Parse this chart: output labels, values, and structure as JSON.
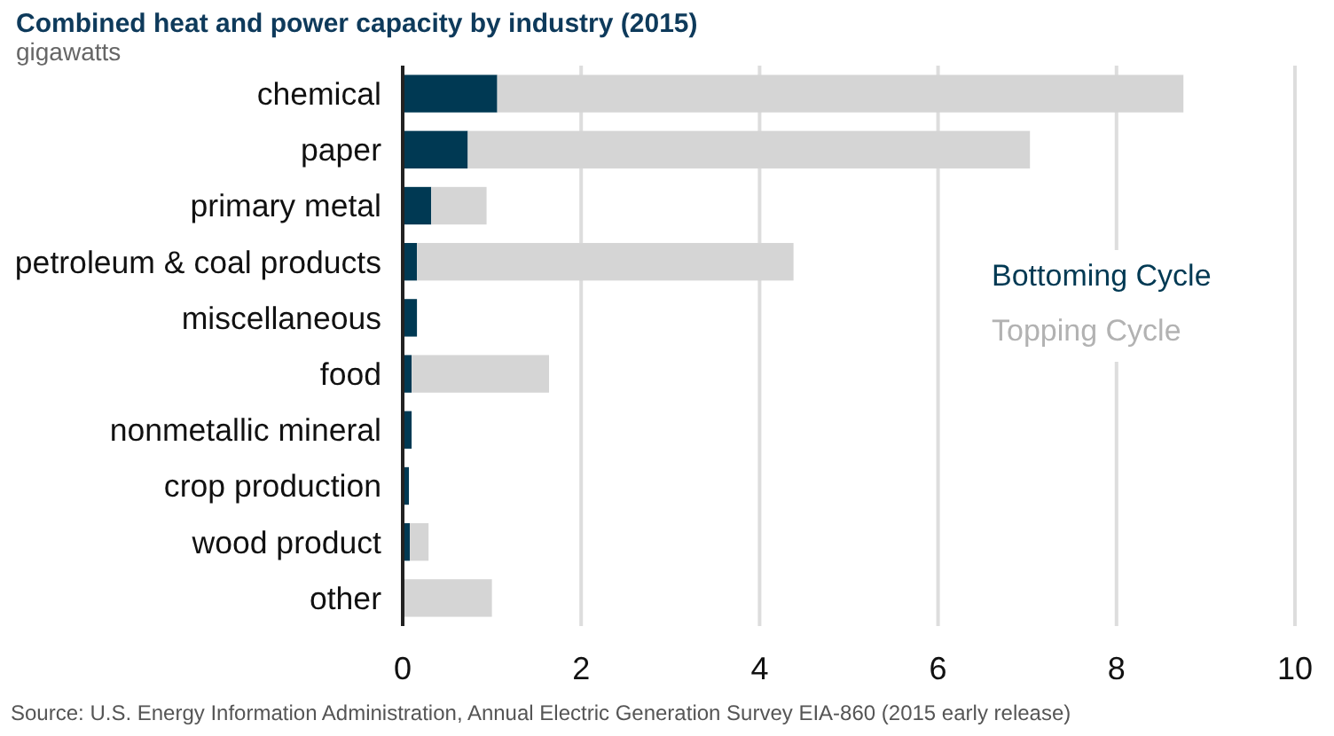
{
  "chart_data": {
    "type": "bar",
    "orientation": "horizontal",
    "stacked": true,
    "title": "Combined heat and power capacity by industry (2015)",
    "subtitle": "gigawatts",
    "categories": [
      "chemical",
      "paper",
      "primary metal",
      "petroleum & coal products",
      "miscellaneous",
      "food",
      "nonmetallic mineral",
      "crop production",
      "wood product",
      "other"
    ],
    "series": [
      {
        "name": "Bottoming Cycle",
        "color": "#003953",
        "values": [
          1.06,
          0.73,
          0.32,
          0.16,
          0.16,
          0.1,
          0.1,
          0.07,
          0.08,
          0
        ]
      },
      {
        "name": "Topping Cycle",
        "color": "#d5d5d5",
        "values": [
          7.69,
          6.3,
          0.62,
          4.22,
          0,
          1.54,
          0,
          0,
          0.21,
          1.0
        ]
      }
    ],
    "xlim": [
      0,
      10
    ],
    "xticks": [
      0,
      2,
      4,
      6,
      8,
      10
    ],
    "grid": "x",
    "legend": "right",
    "annotations": [
      "Source: U.S. Energy Information Administration, Annual Electric Generation Survey EIA-860 (2015 early release)"
    ]
  }
}
